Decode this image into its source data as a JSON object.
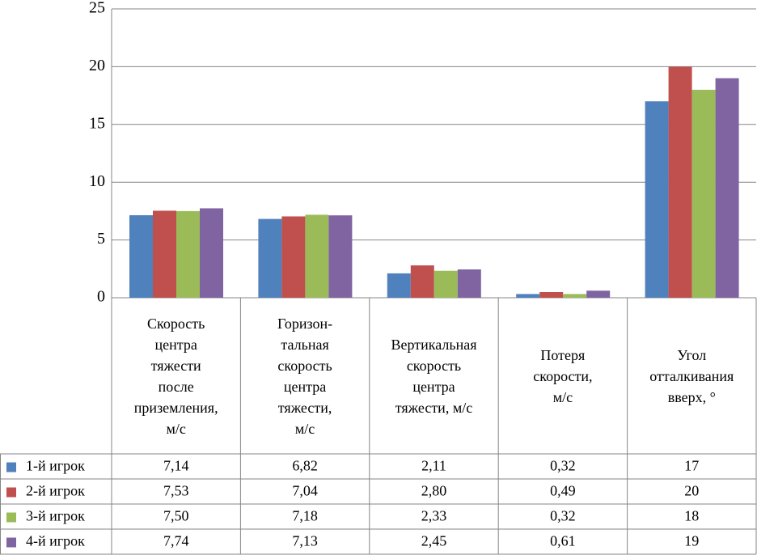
{
  "chart_data": {
    "type": "bar",
    "categories": [
      "Скорость\nцентра\nтяжести\nпосле\nприземления,\nм/с",
      "Горизон-\nтальная\nскорость\nцентра\nтяжести,\nм/с",
      "Вертикальная\nскорость\nцентра\nтяжести, м/с",
      "Потеря\nскорости,\nм/с",
      "Угол\nотталкивания\nвверх, °"
    ],
    "series": [
      {
        "name": "1-й игрок",
        "color": "#4f81bd",
        "values": [
          7.14,
          6.82,
          2.11,
          0.32,
          17
        ],
        "value_labels": [
          "7,14",
          "6,82",
          "2,11",
          "0,32",
          "17"
        ]
      },
      {
        "name": "2-й игрок",
        "color": "#c0504d",
        "values": [
          7.53,
          7.04,
          2.8,
          0.49,
          20
        ],
        "value_labels": [
          "7,53",
          "7,04",
          "2,80",
          "0,49",
          "20"
        ]
      },
      {
        "name": "3-й игрок",
        "color": "#9bbb59",
        "values": [
          7.5,
          7.18,
          2.33,
          0.32,
          18
        ],
        "value_labels": [
          "7,50",
          "7,18",
          "2,33",
          "0,32",
          "18"
        ]
      },
      {
        "name": "4-й игрок",
        "color": "#8064a2",
        "values": [
          7.74,
          7.13,
          2.45,
          0.61,
          19
        ],
        "value_labels": [
          "7,74",
          "7,13",
          "2,45",
          "0,61",
          "19"
        ]
      }
    ],
    "ylim": [
      0,
      25
    ],
    "yticks": [
      0,
      5,
      10,
      15,
      20,
      25
    ],
    "grid": true
  }
}
